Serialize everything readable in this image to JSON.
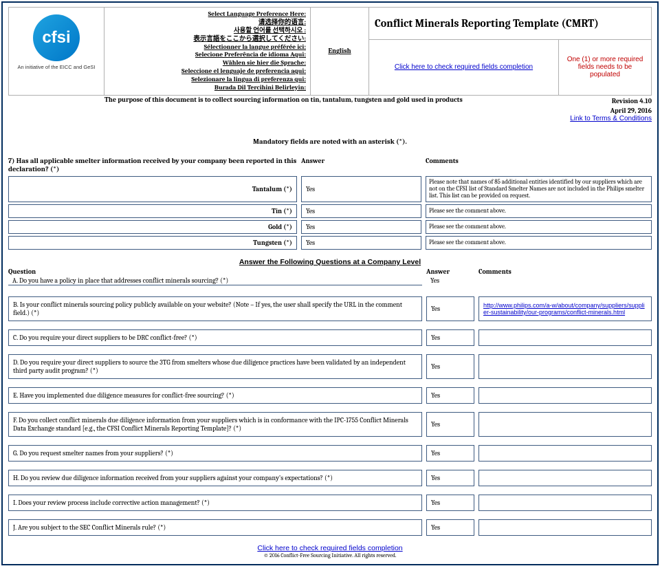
{
  "logo": {
    "text": "cfsi",
    "subtitle": "An initiative of the EICC and GeSI"
  },
  "title": "Conflict Minerals Reporting Template (CMRT)",
  "lang_prompt": [
    "Select Language Preference Here:",
    "请选择你的语言:",
    "사용할 언어를 선택하시오 :",
    "表示言語をここから選択してください:",
    "Sélectionner la langue préférée ici:",
    "Selecione Preferência de idioma Aqui:",
    "Wählen sie hier die Sprache:",
    "Seleccione el lenguaje de preferencia aqui:",
    "Selezionare la lingua di preferenza qui:",
    "Burada Dil Tercihini Belirleyin:"
  ],
  "language": "English",
  "check_fields": "Click here to check required fields completion",
  "warning": "One (1) or more required fields needs to be populated",
  "revision": "Revision 4.10",
  "date": "April 29, 2016",
  "terms": "Link to Terms & Conditions",
  "purpose": "The purpose of this document is to collect sourcing information on tin, tantalum, tungsten and gold used in products",
  "mandatory_note": "Mandatory fields are noted with an asterisk (*).",
  "q7": {
    "title": "7) Has all applicable smelter information received by your company been reported in this declaration?  (*)",
    "head_answer": "Answer",
    "head_comments": "Comments",
    "rows": [
      {
        "label": "Tantalum  (*)",
        "answer": "Yes",
        "comment": "Please note that names of 85 additional entities identified by our suppliers which are not on the CFSI list of Standard Smelter Names are not included in the Philips smelter list.  This list can be provided on request."
      },
      {
        "label": "Tin  (*)",
        "answer": "Yes",
        "comment": "Please see the comment above."
      },
      {
        "label": "Gold  (*)",
        "answer": "Yes",
        "comment": "Please see the comment above."
      },
      {
        "label": "Tungsten  (*)",
        "answer": "Yes",
        "comment": "Please see the comment above."
      }
    ]
  },
  "section_title": "Answer the Following Questions at a Company Level",
  "company_head": {
    "q": "Question",
    "a": "Answer",
    "c": "Comments"
  },
  "questions": [
    {
      "q": "A. Do you have a policy in place that addresses conflict minerals sourcing? (*)",
      "a": "Yes",
      "c": "",
      "first": true
    },
    {
      "q": "B. Is your conflict minerals sourcing policy publicly available on your website? (Note – If yes, the user shall specify the URL in the comment field.) (*)",
      "a": "Yes",
      "c_link": "http://www.philips.com/a-w/about/company/suppliers/supplier-sustainability/our-programs/conflict-minerals.html"
    },
    {
      "q": "C. Do you require your direct suppliers to be DRC conflict-free? (*)",
      "a": "Yes",
      "c": ""
    },
    {
      "q": "D. Do you require your direct suppliers to source the 3TG from smelters whose due diligence practices have been validated by an independent third party audit program? (*)",
      "a": "Yes",
      "c": ""
    },
    {
      "q": "E. Have you implemented due diligence measures for conflict-free sourcing? (*)",
      "a": "Yes",
      "c": ""
    },
    {
      "q": "F. Do you collect conflict minerals due diligence information from your suppliers which is in conformance with the IPC-1755 Conflict Minerals Data Exchange standard [e.g., the CFSI Conflict Minerals Reporting Template]? (*)",
      "a": "Yes",
      "c": ""
    },
    {
      "q": "G. Do you request smelter names from your suppliers? (*)",
      "a": "Yes",
      "c": ""
    },
    {
      "q": "H. Do you review due diligence information received from your suppliers against your company's expectations? (*)",
      "a": "Yes",
      "c": ""
    },
    {
      "q": "I. Does your review process include corrective action management? (*)",
      "a": "Yes",
      "c": ""
    },
    {
      "q": "J. Are you subject to the SEC Conflict Minerals rule? (*)",
      "a": "Yes",
      "c": ""
    }
  ],
  "footer_link": "Click here to check required fields completion",
  "copyright": "© 2016 Conflict-Free Sourcing Initiative. All rights reserved."
}
